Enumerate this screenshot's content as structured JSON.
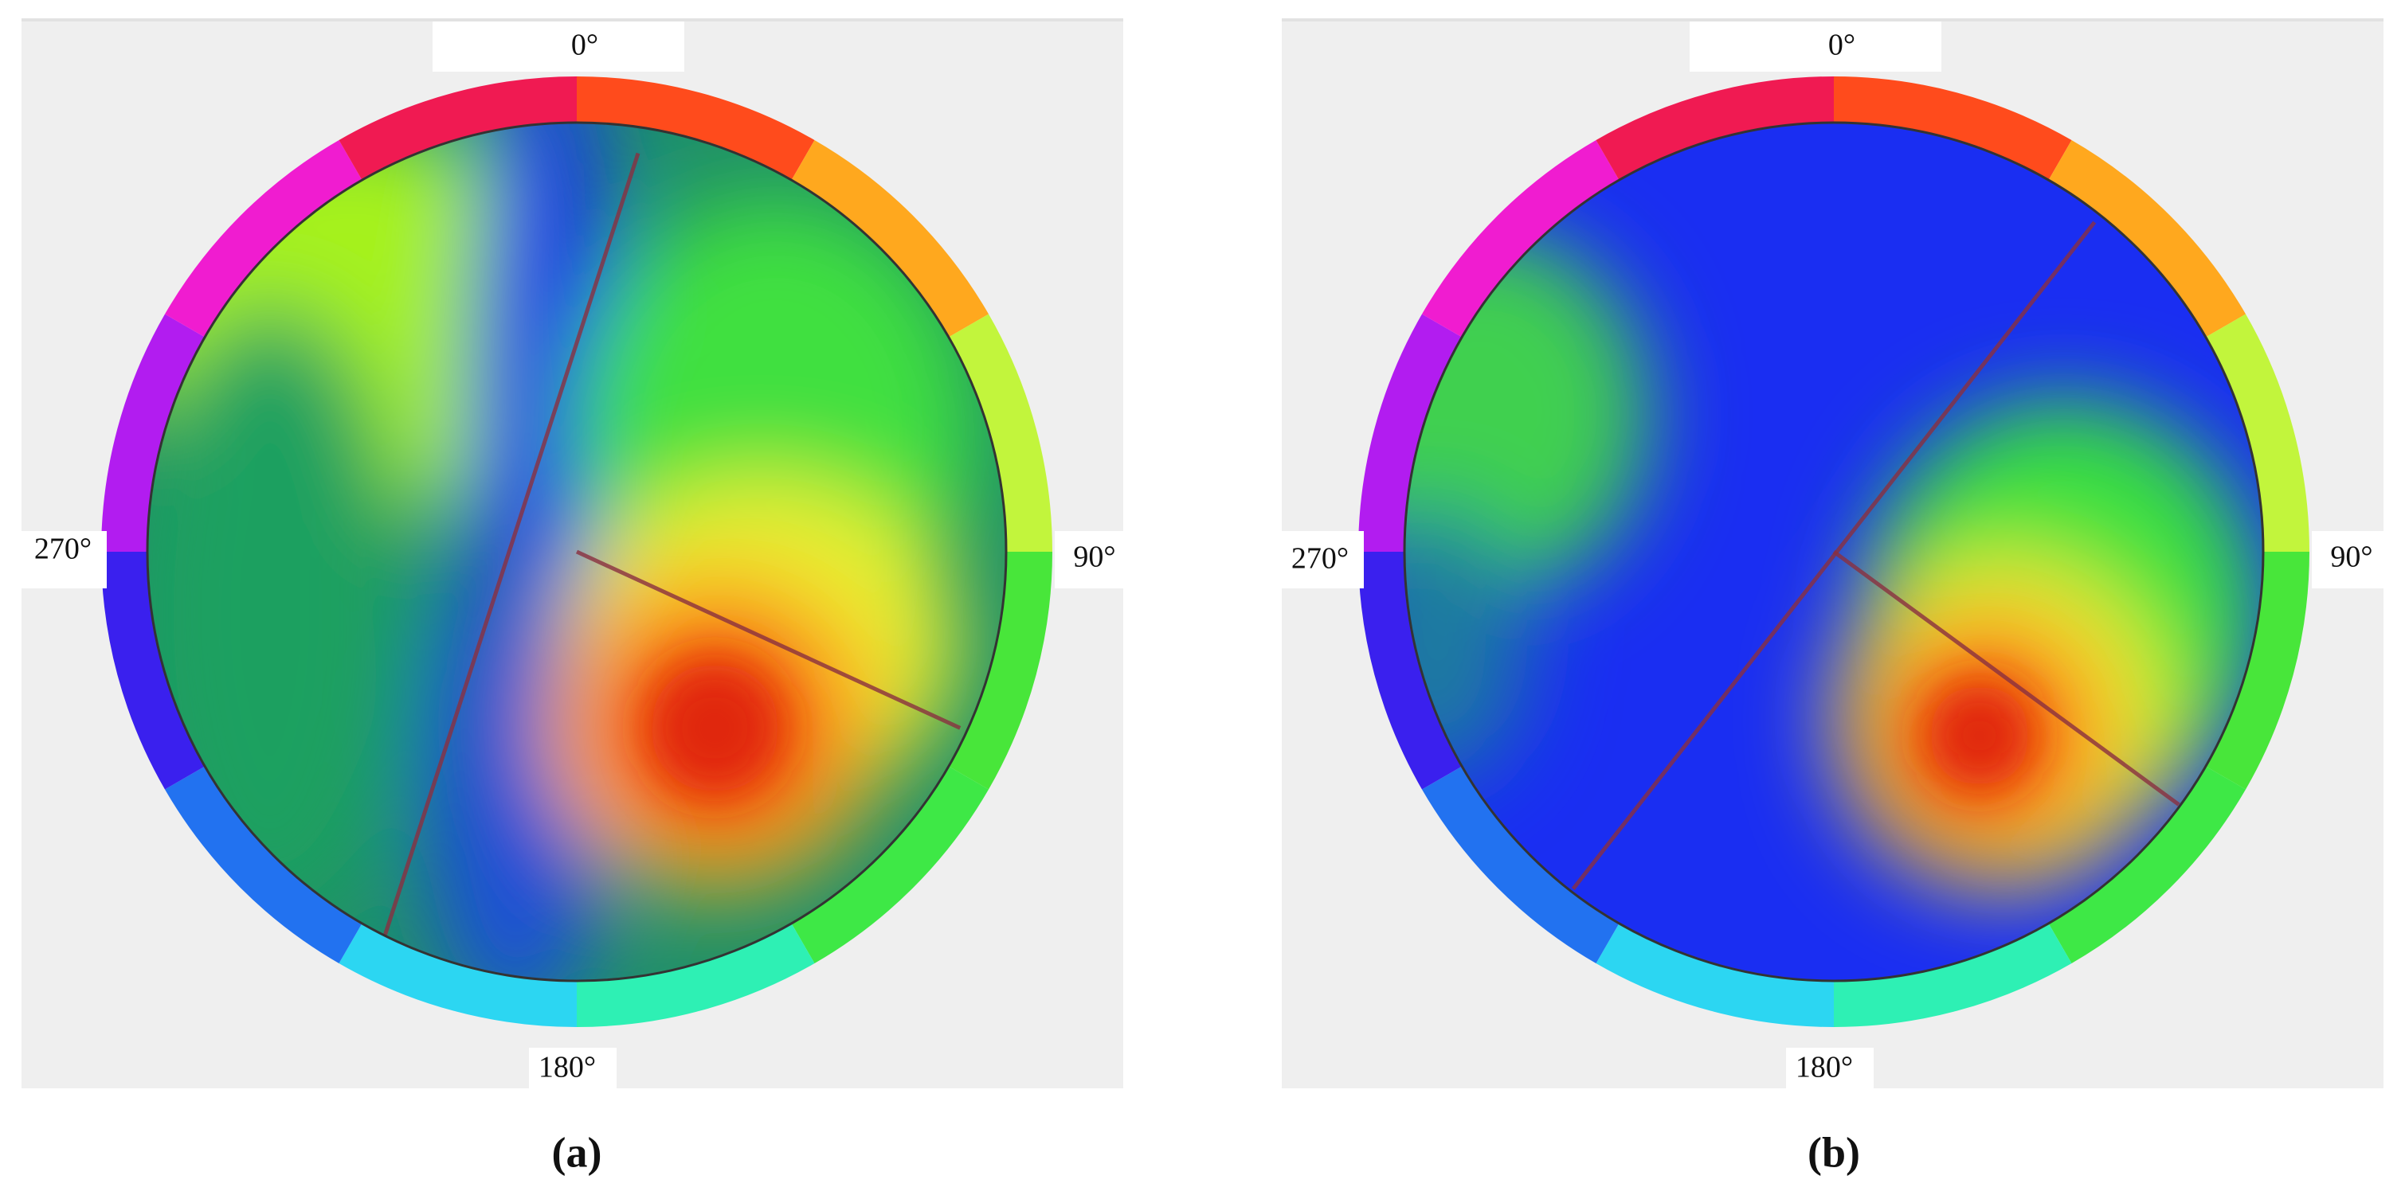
{
  "panels": [
    {
      "labels": {
        "top": "0°",
        "right": "90°",
        "bottom": "180°",
        "left": "270°"
      },
      "caption": "(a)"
    },
    {
      "labels": {
        "top": "0°",
        "right": "90°",
        "bottom": "180°",
        "left": "270°"
      },
      "caption": "(b)"
    }
  ]
}
